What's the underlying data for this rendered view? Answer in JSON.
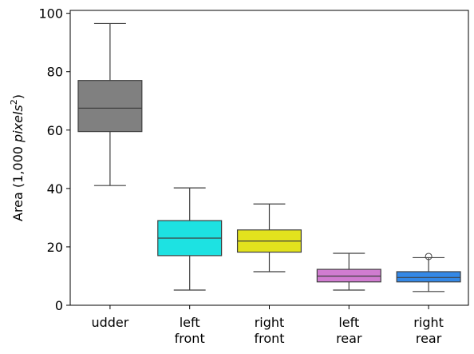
{
  "chart_data": {
    "type": "box",
    "ylabel": "Area (1,000 pixels²)",
    "ylabel_parts": {
      "prefix": "Area (1,000 ",
      "italic": "pixels",
      "sup": "2",
      "suffix": ")"
    },
    "ylim": [
      0,
      101
    ],
    "yticks": [
      0,
      20,
      40,
      60,
      80,
      100
    ],
    "grid": false,
    "categories": [
      {
        "lines": [
          "udder"
        ]
      },
      {
        "lines": [
          "left",
          "front"
        ]
      },
      {
        "lines": [
          "right",
          "front"
        ]
      },
      {
        "lines": [
          "left",
          "rear"
        ]
      },
      {
        "lines": [
          "right",
          "rear"
        ]
      }
    ],
    "boxes": [
      {
        "whisker_low": 41,
        "q1": 59.5,
        "median": 67.5,
        "q3": 77,
        "whisker_high": 96.5,
        "outliers": [],
        "color": "#808080"
      },
      {
        "whisker_low": 5.2,
        "q1": 17,
        "median": 23,
        "q3": 29,
        "whisker_high": 40.2,
        "outliers": [],
        "color": "#1de2e2"
      },
      {
        "whisker_low": 11.5,
        "q1": 18.2,
        "median": 22,
        "q3": 25.8,
        "whisker_high": 34.7,
        "outliers": [],
        "color": "#e2e21d"
      },
      {
        "whisker_low": 5.2,
        "q1": 8,
        "median": 10,
        "q3": 12.3,
        "whisker_high": 17.8,
        "outliers": [],
        "color": "#d07cd0"
      },
      {
        "whisker_low": 4.7,
        "q1": 8,
        "median": 9.5,
        "q3": 11.5,
        "whisker_high": 16.3,
        "outliers": [
          16.7
        ],
        "color": "#3488e6"
      }
    ]
  }
}
